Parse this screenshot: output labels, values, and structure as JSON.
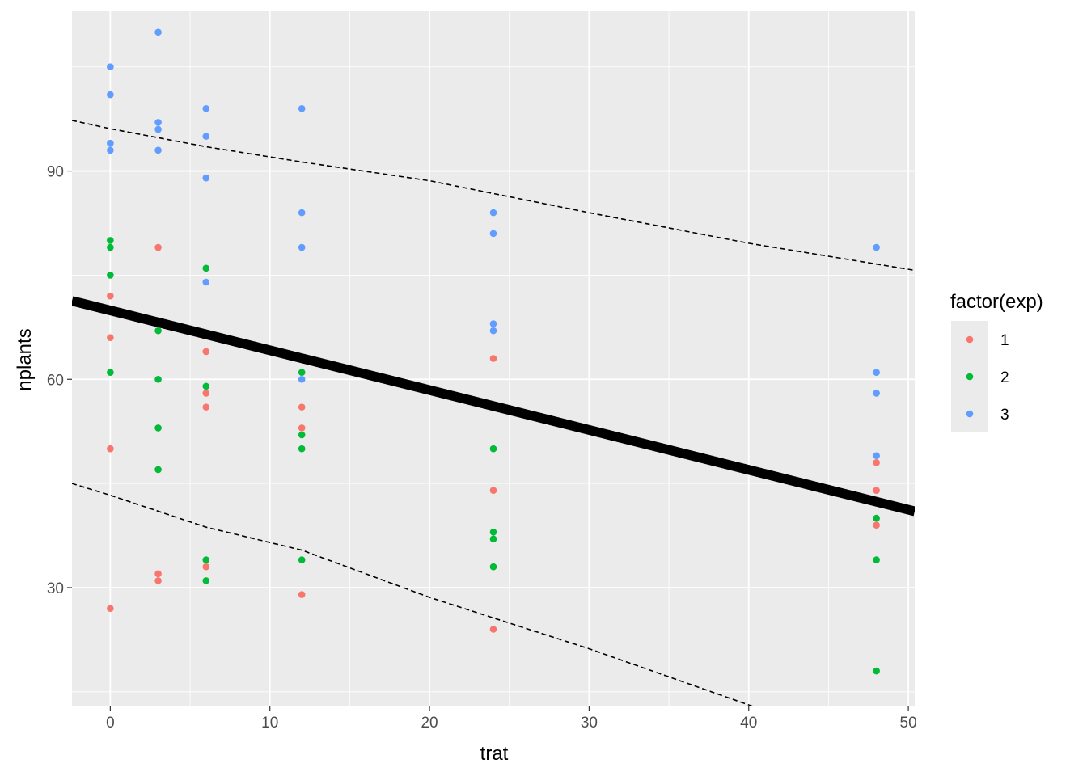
{
  "chart_data": {
    "type": "scatter",
    "title": "",
    "xlabel": "trat",
    "ylabel": "nplants",
    "xlim": [
      -2.4,
      50.4
    ],
    "ylim": [
      13,
      113
    ],
    "x_ticks": [
      0,
      10,
      20,
      30,
      40,
      50
    ],
    "y_ticks": [
      30,
      60,
      90
    ],
    "x_minor_ticks": [
      5,
      15,
      25,
      35,
      45
    ],
    "y_minor_ticks": [
      15,
      45,
      75,
      105
    ],
    "grid": true,
    "legend": {
      "title": "factor(exp)",
      "position": "right"
    },
    "series": [
      {
        "name": "1",
        "color": "#F8766D",
        "points": [
          [
            0,
            72
          ],
          [
            0,
            66
          ],
          [
            0,
            50
          ],
          [
            0,
            27
          ],
          [
            3,
            79
          ],
          [
            3,
            32
          ],
          [
            3,
            31
          ],
          [
            6,
            64
          ],
          [
            6,
            58
          ],
          [
            6,
            56
          ],
          [
            6,
            33
          ],
          [
            12,
            56
          ],
          [
            12,
            53
          ],
          [
            12,
            29
          ],
          [
            24,
            63
          ],
          [
            24,
            44
          ],
          [
            24,
            24
          ],
          [
            48,
            48
          ],
          [
            48,
            44
          ],
          [
            48,
            39
          ]
        ]
      },
      {
        "name": "2",
        "color": "#00BA38",
        "points": [
          [
            0,
            80
          ],
          [
            0,
            79
          ],
          [
            0,
            75
          ],
          [
            0,
            61
          ],
          [
            3,
            67
          ],
          [
            3,
            60
          ],
          [
            3,
            53
          ],
          [
            3,
            47
          ],
          [
            6,
            76
          ],
          [
            6,
            59
          ],
          [
            6,
            34
          ],
          [
            6,
            31
          ],
          [
            12,
            61
          ],
          [
            12,
            52
          ],
          [
            12,
            50
          ],
          [
            12,
            34
          ],
          [
            24,
            50
          ],
          [
            24,
            38
          ],
          [
            24,
            37
          ],
          [
            24,
            33
          ],
          [
            48,
            40
          ],
          [
            48,
            34
          ],
          [
            48,
            18
          ]
        ]
      },
      {
        "name": "3",
        "color": "#619CFF",
        "points": [
          [
            0,
            105
          ],
          [
            0,
            101
          ],
          [
            0,
            94
          ],
          [
            0,
            93
          ],
          [
            3,
            110
          ],
          [
            3,
            97
          ],
          [
            3,
            96
          ],
          [
            3,
            93
          ],
          [
            6,
            99
          ],
          [
            6,
            95
          ],
          [
            6,
            89
          ],
          [
            6,
            74
          ],
          [
            12,
            99
          ],
          [
            12,
            84
          ],
          [
            12,
            79
          ],
          [
            12,
            60
          ],
          [
            24,
            84
          ],
          [
            24,
            81
          ],
          [
            24,
            68
          ],
          [
            24,
            67
          ],
          [
            48,
            79
          ],
          [
            48,
            61
          ],
          [
            48,
            58
          ],
          [
            48,
            49
          ]
        ]
      }
    ],
    "lines": [
      {
        "style": "solid",
        "color": "#000000",
        "points": [
          [
            -2.4,
            71.3
          ],
          [
            50.4,
            41.0
          ]
        ]
      },
      {
        "style": "dashed",
        "color": "#000000",
        "points": [
          [
            -2.4,
            97.3
          ],
          [
            0,
            96.1
          ],
          [
            6,
            93.5
          ],
          [
            12,
            91.3
          ],
          [
            20,
            88.6
          ],
          [
            30,
            84.0
          ],
          [
            40,
            79.6
          ],
          [
            50.4,
            75.7
          ]
        ]
      },
      {
        "style": "dashed",
        "color": "#000000",
        "points": [
          [
            -2.4,
            45.0
          ],
          [
            0,
            43.3
          ],
          [
            6,
            38.7
          ],
          [
            12,
            35.4
          ],
          [
            20,
            28.6
          ],
          [
            30,
            21.2
          ],
          [
            41,
            12.3
          ]
        ]
      }
    ]
  }
}
